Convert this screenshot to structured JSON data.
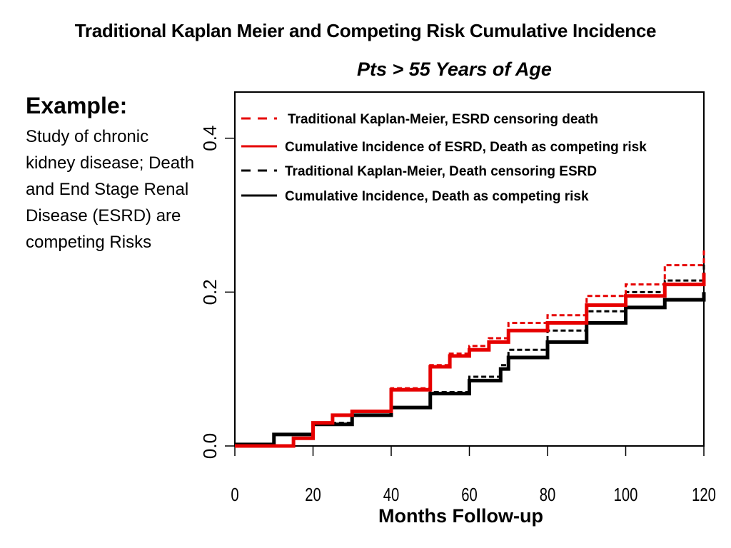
{
  "title": "Traditional Kaplan Meier and Competing Risk Cumulative Incidence",
  "subtitle": "Pts > 55 Years of Age",
  "example": {
    "heading": "Example:",
    "body": "Study of chronic kidney disease; Death and End Stage Renal Disease (ESRD) are competing Risks"
  },
  "chart_data": {
    "type": "line",
    "xlabel": "Months Follow-up",
    "ylabel": "",
    "xlim": [
      0,
      120
    ],
    "ylim": [
      0,
      0.46
    ],
    "xticks": [
      0,
      20,
      40,
      60,
      80,
      100,
      120
    ],
    "xtick_labels": [
      "0",
      "20",
      "40",
      "60",
      "80",
      "100",
      "120"
    ],
    "yticks": [
      0,
      0.2,
      0.4
    ],
    "ytick_labels": [
      "0.0",
      "0.2",
      "0.4"
    ],
    "grid": false,
    "legend_position": "top-left",
    "series": [
      {
        "name": "Traditional Kaplan-Meier, ESRD censoring death",
        "color": "#e60000",
        "dash": "dashed",
        "x": [
          0,
          10,
          15,
          20,
          25,
          30,
          40,
          50,
          55,
          60,
          65,
          70,
          80,
          90,
          100,
          110,
          120
        ],
        "y": [
          0.0,
          0.0,
          0.01,
          0.03,
          0.04,
          0.045,
          0.075,
          0.105,
          0.12,
          0.13,
          0.14,
          0.16,
          0.17,
          0.195,
          0.21,
          0.235,
          0.255
        ]
      },
      {
        "name": "Cumulative Incidence of ESRD, Death as competing risk",
        "color": "#e60000",
        "dash": "solid",
        "x": [
          0,
          10,
          15,
          20,
          25,
          30,
          40,
          50,
          55,
          60,
          65,
          70,
          80,
          90,
          100,
          110,
          120
        ],
        "y": [
          0.0,
          0.0,
          0.01,
          0.03,
          0.04,
          0.045,
          0.073,
          0.103,
          0.117,
          0.125,
          0.135,
          0.15,
          0.16,
          0.183,
          0.195,
          0.21,
          0.225
        ]
      },
      {
        "name": "Traditional Kaplan-Meier, Death censoring ESRD",
        "color": "#000000",
        "dash": "dashed",
        "x": [
          0,
          10,
          20,
          30,
          40,
          50,
          60,
          68,
          70,
          80,
          90,
          100,
          110,
          120
        ],
        "y": [
          0.002,
          0.015,
          0.03,
          0.04,
          0.05,
          0.07,
          0.09,
          0.105,
          0.125,
          0.15,
          0.175,
          0.2,
          0.215,
          0.24
        ]
      },
      {
        "name": "Cumulative Incidence, Death as competing risk",
        "color": "#000000",
        "dash": "solid",
        "x": [
          0,
          10,
          20,
          30,
          40,
          50,
          60,
          68,
          70,
          80,
          90,
          100,
          110,
          120
        ],
        "y": [
          0.002,
          0.015,
          0.028,
          0.04,
          0.05,
          0.068,
          0.085,
          0.1,
          0.115,
          0.135,
          0.16,
          0.18,
          0.19,
          0.2
        ]
      }
    ]
  }
}
